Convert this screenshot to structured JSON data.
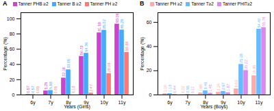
{
  "chart_data": [
    {
      "type": "bar",
      "title": "A",
      "xlabel": "Years (Girls)",
      "ylabel": "Percentage (%)",
      "categories": [
        "6y",
        "7y",
        "8y",
        "9y",
        "10y",
        "11y"
      ],
      "series": [
        {
          "name": "Tanner PHB ≥2",
          "color": "#cc44cc",
          "values": [
            0.57,
            5.29,
            22.18,
            50.73,
            81.59,
            93.06
          ]
        },
        {
          "name": "Tanner B ≥2",
          "color": "#44aaff",
          "values": [
            0.57,
            5.88,
            33.05,
            54.76,
            85.02,
            85.29
          ]
        },
        {
          "name": "Tanner PH ≥2",
          "color": "#ff7777",
          "values": [
            0.05,
            0.05,
            0.13,
            2.47,
            28.09,
            55.88
          ]
        }
      ],
      "ylim": [
        0,
        108
      ],
      "yticks": [
        0,
        20,
        40,
        60,
        80,
        100
      ],
      "legend": "upper left",
      "data_labels": true,
      "grid": false
    },
    {
      "type": "bar",
      "title": "B",
      "xlabel": "Years (Boys)",
      "ylabel": "Percentage (%)",
      "categories": [
        "6y",
        "7y",
        "8y",
        "9y",
        "10y",
        "11y"
      ],
      "series": [
        {
          "name": "Tanner PH ≥2",
          "color": "#ffaaaa",
          "values": [
            1.1,
            0.22,
            1.65,
            2.24,
            5.03,
            15.86
          ],
          "value_labels": [
            "1.10",
            "0.22",
            "1.65",
            "2.24",
            "5.03",
            "15.86"
          ]
        },
        {
          "name": "Tanner T≥2",
          "color": "#66bbff",
          "values": [
            1.13,
            0.55,
            3.45,
            2.97,
            25.28,
            54.4
          ],
          "value_labels": [
            "1.13",
            "0.55",
            "3.45",
            "2.97",
            "25.28",
            "54.40"
          ]
        },
        {
          "name": "Tanner PHiT≥2",
          "color": "#dd88ee",
          "values": [
            0.44,
            0.11,
            1.45,
            1.87,
            20.22,
            55.76
          ],
          "value_labels": [
            "0.44",
            "0.11",
            "1.45",
            "1.87",
            "20.22",
            "55.76"
          ]
        }
      ],
      "ylim": [
        0,
        68
      ],
      "yticks": [
        0,
        20,
        40,
        60
      ],
      "legend": "upper left",
      "data_labels": true,
      "grid": false
    }
  ]
}
